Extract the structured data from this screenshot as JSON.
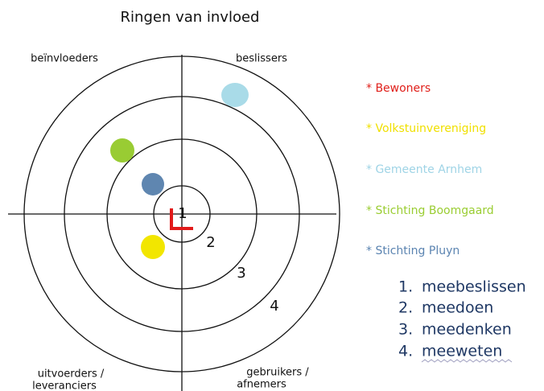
{
  "title": "Ringen van invloed",
  "quadrants": {
    "top_left": "beïnvloeders",
    "top_right": "beslissers",
    "bottom_left": [
      "uitvoerders /",
      "leveranciers"
    ],
    "bottom_right": [
      "gebruikers /",
      "afnemers"
    ]
  },
  "ring_numbers": [
    "1",
    "2",
    "3",
    "4"
  ],
  "legend": [
    "* Bewoners",
    "* Volkstuinvereniging",
    "* Gemeente Arnhem",
    "* Stichting Boomgaard",
    "* Stichting Pluyn"
  ],
  "levels": [
    {
      "number": "1.",
      "text": "meebeslissen"
    },
    {
      "number": "2.",
      "text": "meedoen"
    },
    {
      "number": "3.",
      "text": "meedenken"
    },
    {
      "number": "4.",
      "text": "meeweten"
    }
  ]
}
